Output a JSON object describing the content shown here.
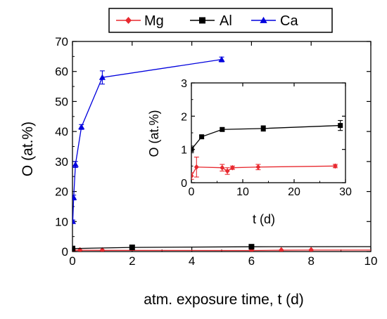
{
  "chart_data": {
    "type": "line",
    "legend": {
      "placement": "top",
      "entries": [
        {
          "name": "Mg",
          "color": "#e8292f",
          "marker": "diamond"
        },
        {
          "name": "Al",
          "color": "#000000",
          "marker": "square"
        },
        {
          "name": "Ca",
          "color": "#0000dd",
          "marker": "triangle"
        }
      ]
    },
    "main": {
      "xlabel": "atm. exposure time, t (d)",
      "ylabel": "O (at.%)",
      "xlim": [
        0,
        10
      ],
      "ylim": [
        0,
        70
      ],
      "xticks": [
        0,
        2,
        4,
        6,
        8,
        10
      ],
      "yticks": [
        0,
        10,
        20,
        30,
        40,
        50,
        60,
        70
      ],
      "series": [
        {
          "name": "Mg",
          "color": "#e8292f",
          "marker": "diamond",
          "x": [
            0,
            0.04,
            0.25,
            1,
            6,
            7,
            8,
            10.5
          ],
          "y": [
            0.2,
            0.45,
            0.45,
            0.4,
            0.35,
            0.45,
            0.5,
            0.5
          ],
          "err": [
            0,
            0,
            0,
            0,
            0,
            0,
            0,
            0
          ]
        },
        {
          "name": "Al",
          "color": "#000000",
          "marker": "square",
          "x": [
            0,
            2,
            6,
            10.5
          ],
          "y": [
            1.0,
            1.38,
            1.6,
            1.65
          ],
          "err": [
            0,
            0,
            0,
            0
          ]
        },
        {
          "name": "Ca",
          "color": "#0000dd",
          "marker": "triangle",
          "x": [
            0.01,
            0.04,
            0.1,
            0.3,
            1,
            5
          ],
          "y": [
            10,
            18,
            29,
            41.5,
            58,
            64
          ],
          "err": [
            0.5,
            0.8,
            1.0,
            0.8,
            2.2,
            0.8
          ]
        }
      ]
    },
    "inset": {
      "xlabel": "t (d)",
      "ylabel": "O (at.%)",
      "xlim": [
        0,
        30
      ],
      "ylim": [
        0,
        3
      ],
      "xticks": [
        0,
        10,
        20,
        30
      ],
      "yticks": [
        0,
        1,
        2,
        3
      ],
      "series": [
        {
          "name": "Mg",
          "color": "#e8292f",
          "marker": "diamond",
          "x": [
            0,
            1,
            6,
            7,
            8,
            13,
            28
          ],
          "y": [
            0.2,
            0.47,
            0.45,
            0.35,
            0.45,
            0.47,
            0.5
          ],
          "err": [
            0.1,
            0.3,
            0.1,
            0.1,
            0.05,
            0.08,
            0.05
          ]
        },
        {
          "name": "Al",
          "color": "#000000",
          "marker": "square",
          "x": [
            0,
            2,
            6,
            14,
            29
          ],
          "y": [
            1.0,
            1.38,
            1.6,
            1.63,
            1.72
          ],
          "err": [
            0.1,
            0.05,
            0.05,
            0.08,
            0.15
          ]
        }
      ]
    }
  }
}
